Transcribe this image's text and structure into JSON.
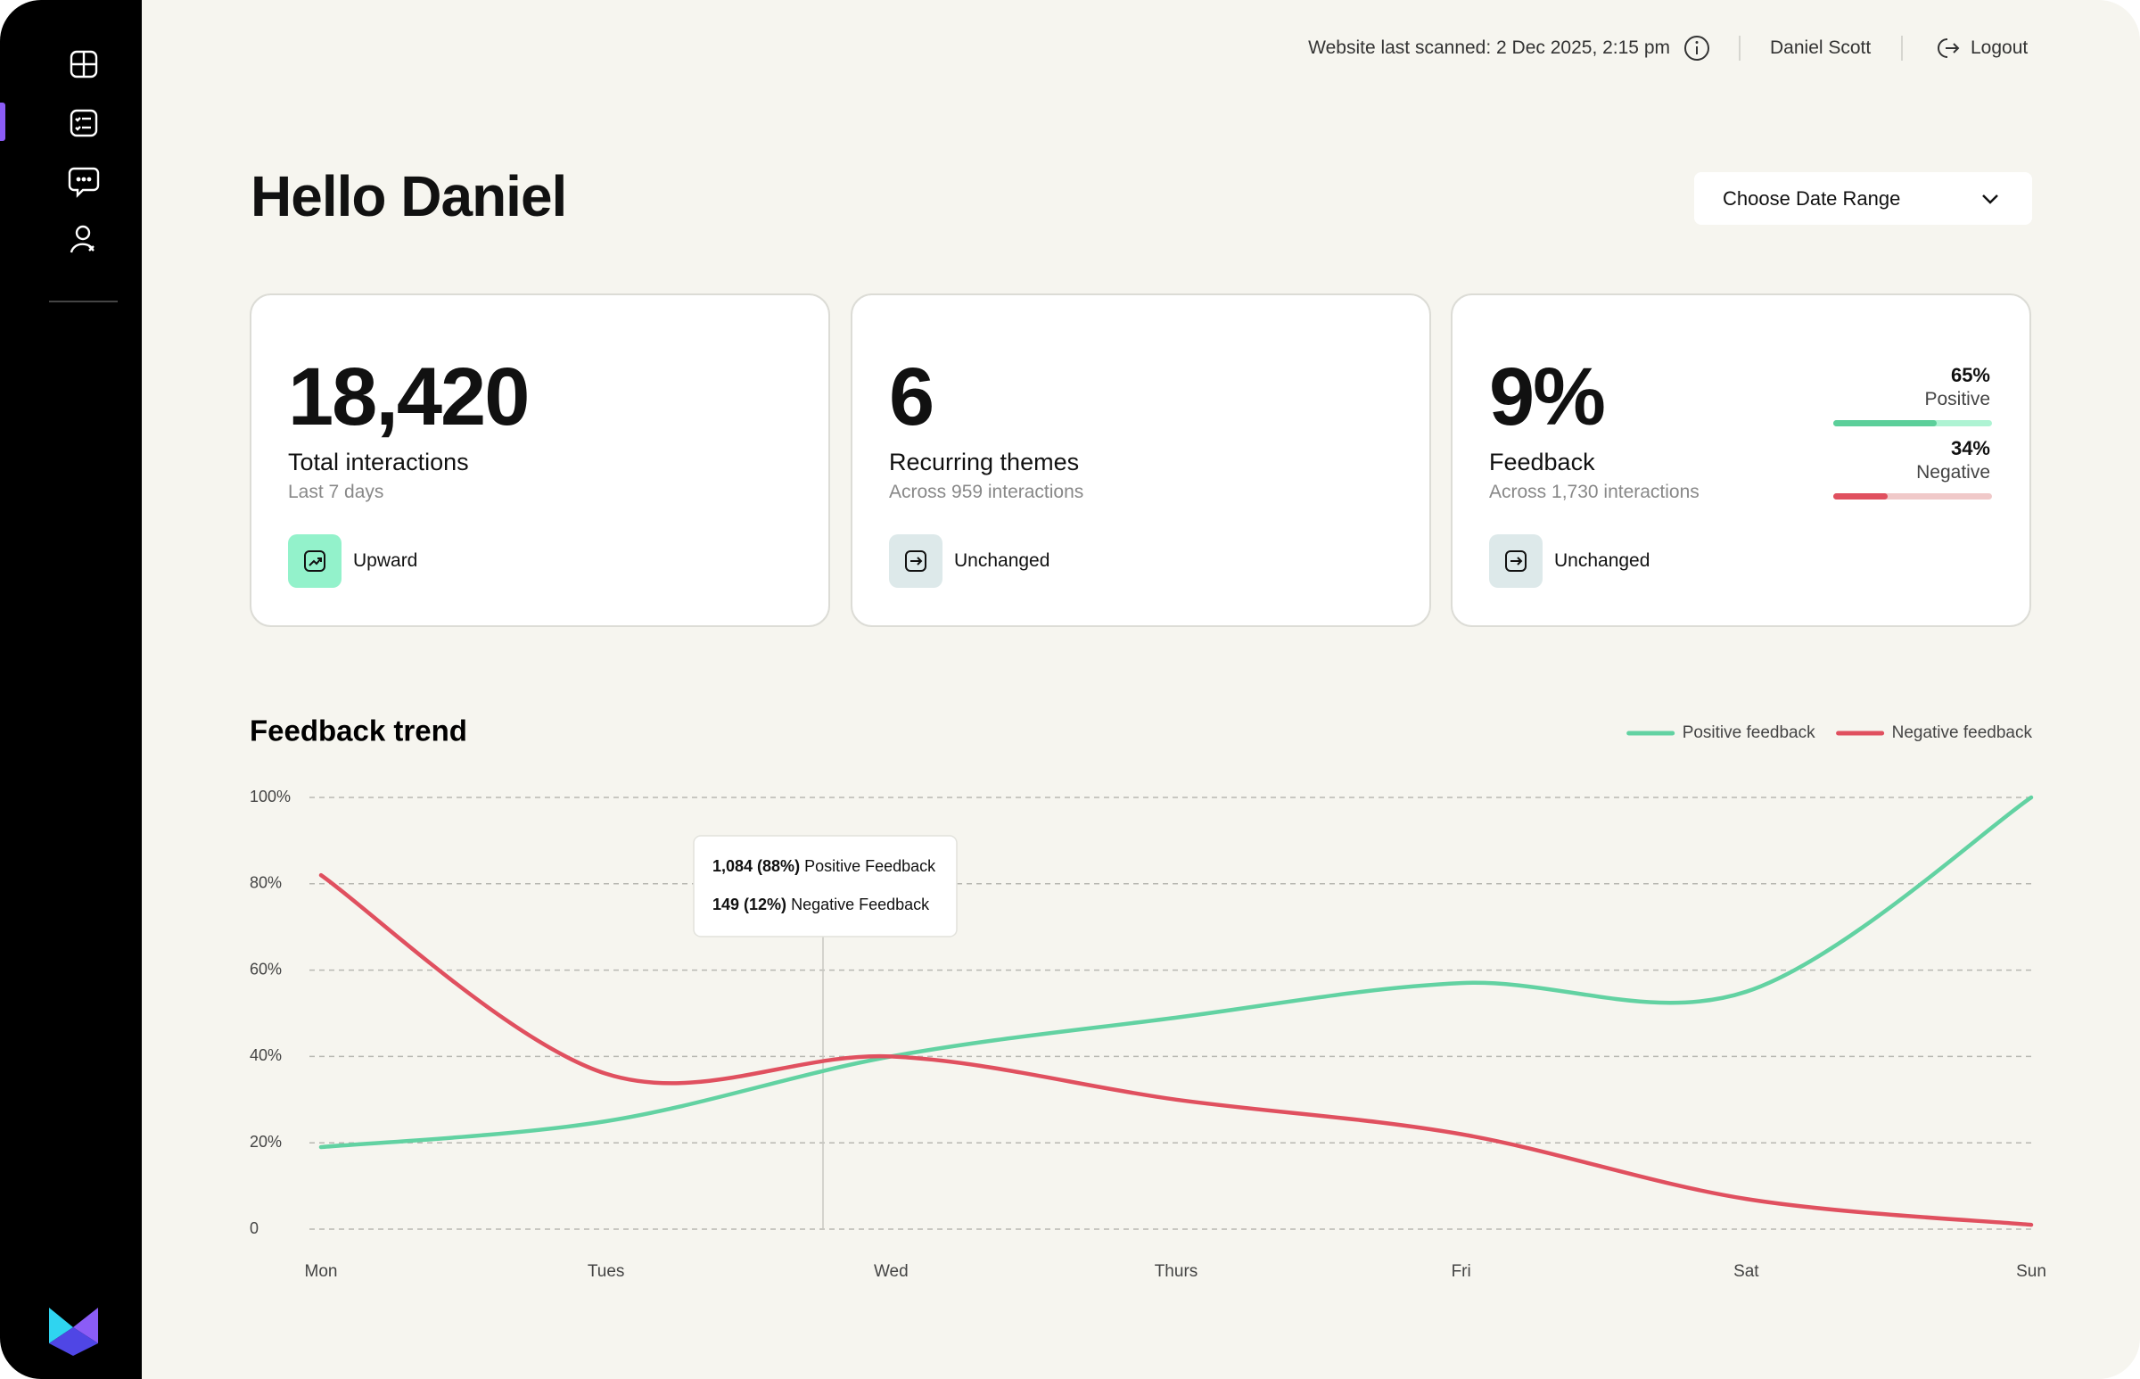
{
  "header": {
    "scan_status": "Website last scanned: 2 Dec 2025, 2:15 pm",
    "user_name": "Daniel Scott",
    "logout": "Logout"
  },
  "greeting": "Hello Daniel",
  "date_range": "Choose Date Range",
  "cards": [
    {
      "value": "18,420",
      "label": "Total interactions",
      "sub": "Last 7 days",
      "trend": "Upward"
    },
    {
      "value": "6",
      "label": "Recurring themes",
      "sub": "Across 959 interactions",
      "trend": "Unchanged"
    },
    {
      "value": "9%",
      "label": "Feedback",
      "sub": "Across 1,730 interactions",
      "trend": "Unchanged",
      "breakdown": [
        {
          "name": "Positive",
          "value": 65,
          "value_label": "65%",
          "color": "#5ccf9a",
          "track": "#aef3d3"
        },
        {
          "name": "Negative",
          "value": 34,
          "value_label": "34%",
          "color": "#e0505f",
          "track": "#f0c9c9"
        }
      ]
    }
  ],
  "chart_data": {
    "type": "line",
    "title": "Feedback trend",
    "categories": [
      "Mon",
      "Tues",
      "Wed",
      "Thurs",
      "Fri",
      "Sat",
      "Sun"
    ],
    "series": [
      {
        "name": "Positive feedback",
        "color": "#62d2a2",
        "values": [
          19,
          25,
          40,
          49,
          57,
          55,
          100
        ]
      },
      {
        "name": "Negative feedback",
        "color": "#e0505f",
        "values": [
          82,
          36,
          40,
          30,
          22,
          7,
          1
        ]
      }
    ],
    "ylim": [
      0,
      100
    ],
    "yticks": [
      0,
      {
        "value": 20,
        "label": "20%"
      },
      {
        "value": 40,
        "label": "40%"
      },
      {
        "value": 60,
        "label": "60%"
      },
      {
        "value": 80,
        "label": "80%"
      },
      {
        "value": 100,
        "label": "100%"
      }
    ],
    "grid": true,
    "legend": "top-right",
    "tooltip": [
      {
        "value": "1,084 (88%)",
        "label": "Positive Feedback"
      },
      {
        "value": "149 (12%)",
        "label": "Negative Feedback"
      }
    ]
  }
}
